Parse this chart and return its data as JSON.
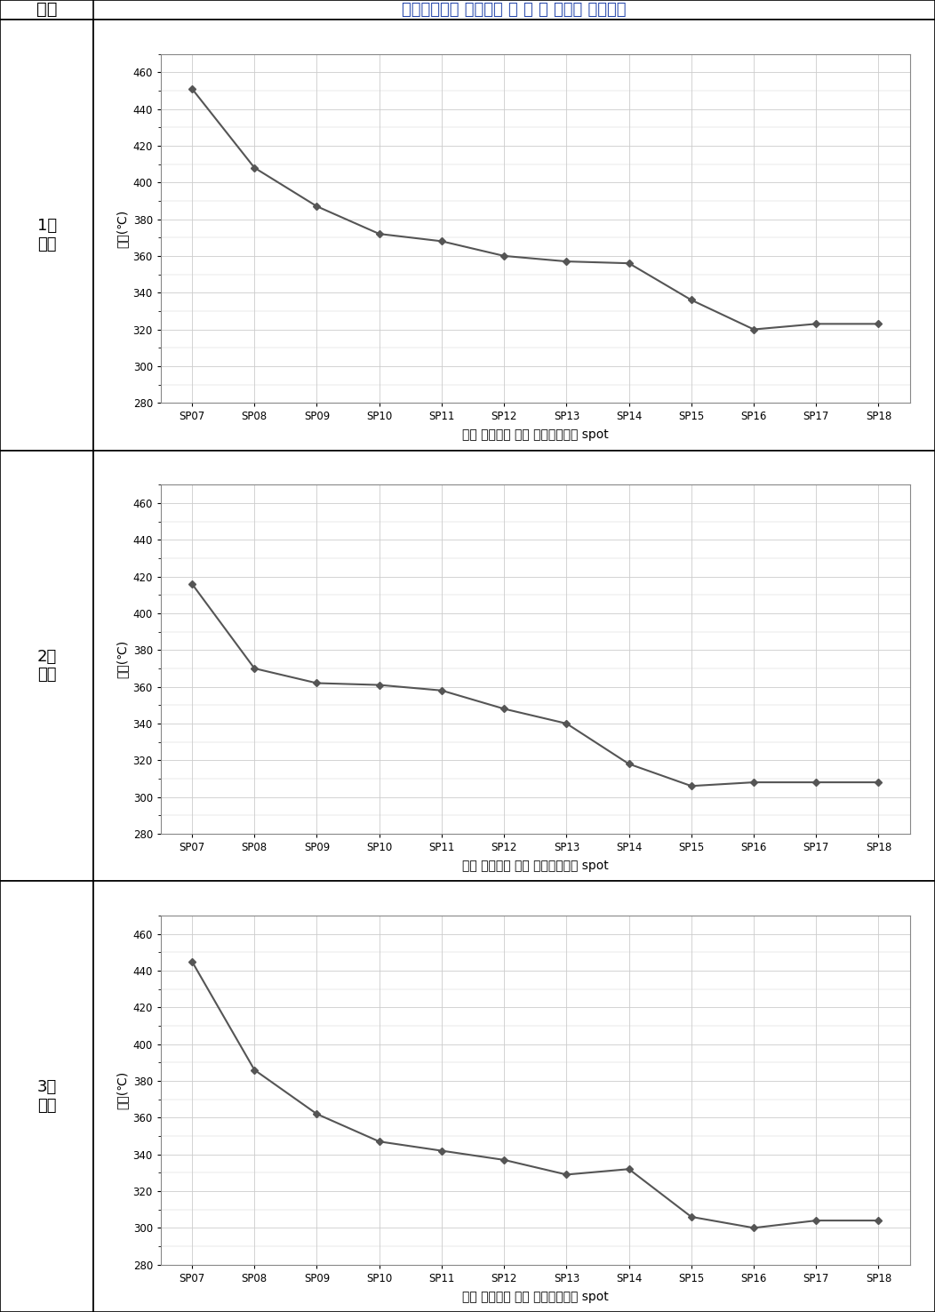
{
  "header_left": "구분",
  "header_right": "제동디스크의 최고온도 일 때 각 지점의 온도현황",
  "x_labels": [
    "SP07",
    "SP08",
    "SP09",
    "SP10",
    "SP11",
    "SP12",
    "SP13",
    "SP14",
    "SP15",
    "SP16",
    "SP17",
    "SP18"
  ],
  "xlabel": "제동 디스크의 회전 중심으로부터 spot",
  "ylabel": "온도(℃)",
  "ylim": [
    280,
    470
  ],
  "yticks": [
    280,
    300,
    320,
    340,
    360,
    380,
    400,
    420,
    440,
    460
  ],
  "series": [
    {
      "label": "1회\n시험",
      "values": [
        451,
        408,
        387,
        372,
        368,
        360,
        357,
        356,
        336,
        320,
        323,
        323
      ]
    },
    {
      "label": "2회\n시험",
      "values": [
        416,
        370,
        362,
        361,
        358,
        348,
        340,
        318,
        306,
        308,
        308,
        308
      ]
    },
    {
      "label": "3회\n시험",
      "values": [
        445,
        386,
        362,
        347,
        342,
        337,
        329,
        332,
        306,
        300,
        304,
        304
      ]
    }
  ],
  "line_color": "#555555",
  "marker": "D",
  "marker_size": 4,
  "grid_color": "#cccccc",
  "plot_bg_color": "#ffffff"
}
